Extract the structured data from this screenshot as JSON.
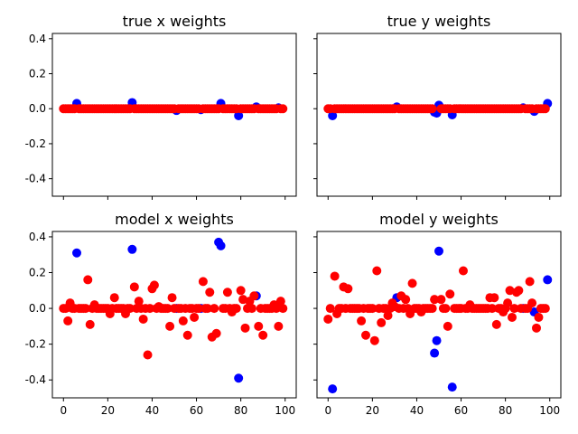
{
  "chart_data": [
    {
      "type": "scatter",
      "title": "true x weights",
      "xlim": [
        -5,
        105
      ],
      "ylim": [
        -0.5,
        0.43
      ],
      "yticks": [
        -0.4,
        -0.2,
        0.0,
        0.2,
        0.4
      ],
      "xticks": [
        0,
        20,
        40,
        60,
        80,
        100
      ],
      "show_xticklabels": false,
      "show_yticklabels": true,
      "series": [
        {
          "color": "#0000ff",
          "points": [
            [
              6,
              0.03
            ],
            [
              31,
              0.035
            ],
            [
              51,
              -0.01
            ],
            [
              62,
              -0.005
            ],
            [
              71,
              0.03
            ],
            [
              79,
              -0.04
            ],
            [
              87,
              0.01
            ],
            [
              97,
              0.005
            ]
          ]
        },
        {
          "color": "#ff0000",
          "baseline_zero_range": [
            0,
            99
          ],
          "points": []
        }
      ]
    },
    {
      "type": "scatter",
      "title": "true y weights",
      "xlim": [
        -5,
        105
      ],
      "ylim": [
        -0.5,
        0.43
      ],
      "yticks": [
        -0.4,
        -0.2,
        0.0,
        0.2,
        0.4
      ],
      "xticks": [
        0,
        20,
        40,
        60,
        80,
        100
      ],
      "show_xticklabels": false,
      "show_yticklabels": false,
      "series": [
        {
          "color": "#0000ff",
          "points": [
            [
              2,
              -0.04
            ],
            [
              31,
              0.01
            ],
            [
              48,
              -0.02
            ],
            [
              49,
              -0.025
            ],
            [
              50,
              0.02
            ],
            [
              56,
              -0.035
            ],
            [
              88,
              0.005
            ],
            [
              93,
              -0.015
            ],
            [
              99,
              0.03
            ]
          ]
        },
        {
          "color": "#ff0000",
          "baseline_zero_range": [
            0,
            99
          ],
          "points": []
        }
      ]
    },
    {
      "type": "scatter",
      "title": "model x weights",
      "xlim": [
        -5,
        105
      ],
      "ylim": [
        -0.5,
        0.43
      ],
      "yticks": [
        -0.4,
        -0.2,
        0.0,
        0.2,
        0.4
      ],
      "xticks": [
        0,
        20,
        40,
        60,
        80,
        100
      ],
      "show_xticklabels": true,
      "show_yticklabels": true,
      "series": [
        {
          "color": "#0000ff",
          "points": [
            [
              6,
              0.31
            ],
            [
              31,
              0.33
            ],
            [
              51,
              0.0
            ],
            [
              62,
              0.0
            ],
            [
              70,
              0.37
            ],
            [
              71,
              0.35
            ],
            [
              79,
              -0.39
            ],
            [
              87,
              0.07
            ],
            [
              97,
              0.01
            ]
          ]
        },
        {
          "color": "#ff0000",
          "baseline_zero_range": [
            0,
            99
          ],
          "points": [
            [
              2,
              -0.07
            ],
            [
              3,
              0.03
            ],
            [
              11,
              0.16
            ],
            [
              12,
              -0.09
            ],
            [
              14,
              0.02
            ],
            [
              21,
              -0.03
            ],
            [
              23,
              0.06
            ],
            [
              28,
              -0.03
            ],
            [
              32,
              0.12
            ],
            [
              34,
              0.04
            ],
            [
              36,
              -0.06
            ],
            [
              38,
              -0.26
            ],
            [
              40,
              0.11
            ],
            [
              41,
              0.13
            ],
            [
              43,
              0.01
            ],
            [
              48,
              -0.1
            ],
            [
              49,
              0.06
            ],
            [
              54,
              -0.07
            ],
            [
              56,
              -0.15
            ],
            [
              59,
              -0.05
            ],
            [
              63,
              0.15
            ],
            [
              66,
              0.09
            ],
            [
              67,
              -0.16
            ],
            [
              69,
              -0.14
            ],
            [
              74,
              0.09
            ],
            [
              76,
              -0.02
            ],
            [
              80,
              0.1
            ],
            [
              81,
              0.05
            ],
            [
              82,
              -0.11
            ],
            [
              84,
              0.04
            ],
            [
              86,
              0.07
            ],
            [
              88,
              -0.1
            ],
            [
              90,
              -0.15
            ],
            [
              95,
              0.02
            ],
            [
              97,
              -0.1
            ],
            [
              98,
              0.04
            ]
          ]
        }
      ]
    },
    {
      "type": "scatter",
      "title": "model y weights",
      "xlim": [
        -5,
        105
      ],
      "ylim": [
        -0.5,
        0.43
      ],
      "yticks": [
        -0.4,
        -0.2,
        0.0,
        0.2,
        0.4
      ],
      "xticks": [
        0,
        20,
        40,
        60,
        80,
        100
      ],
      "show_xticklabels": true,
      "show_yticklabels": false,
      "series": [
        {
          "color": "#0000ff",
          "points": [
            [
              2,
              -0.45
            ],
            [
              31,
              0.06
            ],
            [
              48,
              -0.25
            ],
            [
              49,
              -0.18
            ],
            [
              50,
              0.32
            ],
            [
              56,
              -0.44
            ],
            [
              88,
              0.0
            ],
            [
              93,
              -0.02
            ],
            [
              99,
              0.16
            ]
          ]
        },
        {
          "color": "#ff0000",
          "baseline_zero_range": [
            0,
            99
          ],
          "points": [
            [
              0,
              -0.06
            ],
            [
              3,
              0.18
            ],
            [
              4,
              -0.03
            ],
            [
              7,
              0.12
            ],
            [
              9,
              0.11
            ],
            [
              15,
              -0.07
            ],
            [
              17,
              -0.15
            ],
            [
              21,
              -0.18
            ],
            [
              22,
              0.21
            ],
            [
              24,
              -0.08
            ],
            [
              27,
              -0.04
            ],
            [
              29,
              0.03
            ],
            [
              30,
              0.01
            ],
            [
              33,
              0.07
            ],
            [
              35,
              0.05
            ],
            [
              37,
              -0.03
            ],
            [
              38,
              0.14
            ],
            [
              42,
              -0.02
            ],
            [
              48,
              0.05
            ],
            [
              51,
              0.05
            ],
            [
              54,
              -0.1
            ],
            [
              55,
              0.08
            ],
            [
              61,
              0.21
            ],
            [
              64,
              0.02
            ],
            [
              73,
              0.06
            ],
            [
              75,
              0.06
            ],
            [
              76,
              -0.09
            ],
            [
              79,
              -0.02
            ],
            [
              81,
              0.03
            ],
            [
              82,
              0.1
            ],
            [
              83,
              -0.05
            ],
            [
              85,
              0.09
            ],
            [
              86,
              0.1
            ],
            [
              91,
              0.15
            ],
            [
              92,
              0.03
            ],
            [
              94,
              -0.11
            ],
            [
              95,
              -0.05
            ]
          ]
        }
      ]
    }
  ]
}
